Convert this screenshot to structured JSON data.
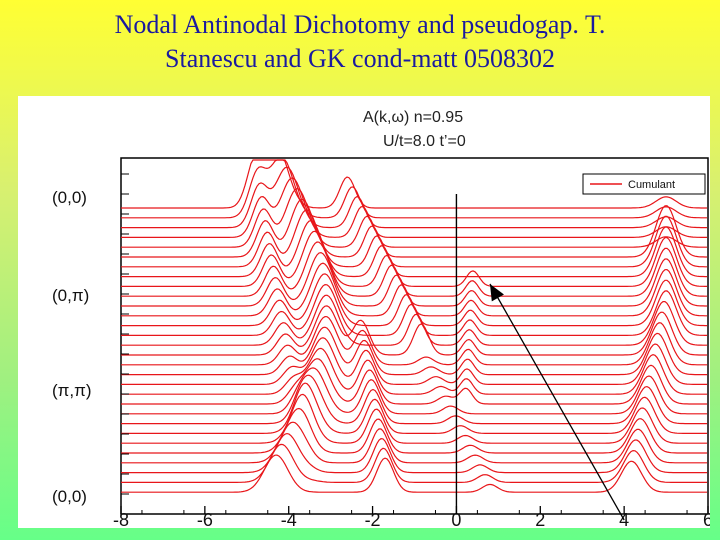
{
  "slide": {
    "title_line1": "Nodal Antinodal Dichotomy and pseudogap. T.",
    "title_line2": "Stanescu and GK cond-matt 0508302"
  },
  "chart_data": {
    "type": "line",
    "title_line1": "A(k,ω) n=0.95",
    "title_line2": "U/t=8.0 t’=0",
    "xlim": [
      -8,
      6
    ],
    "x_ticks": [
      "-8",
      "-6",
      "-4",
      "-2",
      "0",
      "2",
      "4",
      "6"
    ],
    "x_tick_values": [
      -8,
      -6,
      -4,
      -2,
      0,
      2,
      4,
      6
    ],
    "k_labels": [
      "(0,0)",
      "(0,π)",
      "(π,π)",
      "(0,0)"
    ],
    "curve_count": 30,
    "legend": [
      {
        "name": "Cumulant",
        "color": "#e8161a"
      }
    ],
    "series_color": "#e8161a",
    "vertical_line_x": 0,
    "arrow": {
      "from": [
        4,
        0
      ],
      "to": [
        0.8,
        2.2
      ]
    }
  }
}
